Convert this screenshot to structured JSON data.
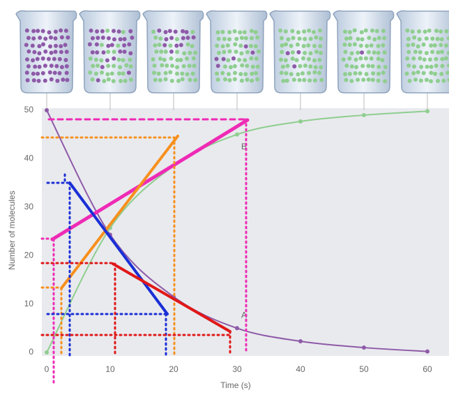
{
  "chart_data": {
    "type": "line",
    "x": [
      0,
      10,
      20,
      30,
      40,
      50,
      60
    ],
    "series": [
      {
        "name": "A",
        "color": "#8e5aa8",
        "values": [
          50,
          24.3,
          11.5,
          5,
          2.3,
          1,
          0.2
        ]
      },
      {
        "name": "B",
        "color": "#8fce8f",
        "values": [
          0,
          25.7,
          38.5,
          45,
          47.7,
          49,
          49.8
        ]
      }
    ],
    "xlabel": "Time (s)",
    "ylabel": "Number of molecules",
    "xlim": [
      0,
      60
    ],
    "ylim": [
      0,
      50
    ],
    "xticks": [
      0,
      10,
      20,
      30,
      40,
      50,
      60
    ],
    "yticks": [
      0,
      10,
      20,
      30,
      40,
      50
    ]
  }
}
